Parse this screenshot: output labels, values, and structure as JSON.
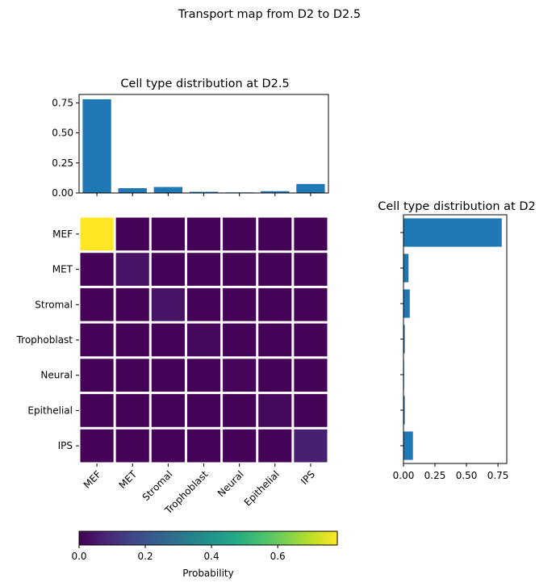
{
  "figure_title": "Transport map from D2 to D2.5",
  "colorbar": {
    "label": "Probability",
    "ticks": [
      0.0,
      0.2,
      0.4,
      0.6
    ],
    "tick_labels": [
      "0.0",
      "0.2",
      "0.4",
      "0.6"
    ],
    "range": [
      0,
      0.78
    ],
    "colormap": "viridis"
  },
  "chart_data": [
    {
      "type": "bar",
      "title": "Cell type distribution at D2.5",
      "categories": [
        "MEF",
        "MET",
        "Stromal",
        "Trophoblast",
        "Neural",
        "Epithelial",
        "IPS"
      ],
      "values": [
        0.78,
        0.04,
        0.05,
        0.01,
        0.005,
        0.015,
        0.075
      ],
      "ylim": [
        0,
        0.82
      ],
      "yticks": [
        "0.00",
        "0.25",
        "0.50",
        "0.75"
      ],
      "ytick_values": [
        0,
        0.25,
        0.5,
        0.75
      ],
      "color": "#1f77b4"
    },
    {
      "type": "heatmap",
      "rows": [
        "MEF",
        "MET",
        "Stromal",
        "Trophoblast",
        "Neural",
        "Epithelial",
        "IPS"
      ],
      "cols": [
        "MEF",
        "MET",
        "Stromal",
        "Trophoblast",
        "Neural",
        "Epithelial",
        "IPS"
      ],
      "values": [
        [
          0.78,
          0.005,
          0.005,
          0.005,
          0.005,
          0.005,
          0.005
        ],
        [
          0.005,
          0.04,
          0.005,
          0.005,
          0.005,
          0.005,
          0.005
        ],
        [
          0.005,
          0.005,
          0.04,
          0.005,
          0.005,
          0.005,
          0.005
        ],
        [
          0.005,
          0.005,
          0.005,
          0.015,
          0.005,
          0.005,
          0.005
        ],
        [
          0.005,
          0.005,
          0.005,
          0.005,
          0.01,
          0.005,
          0.005
        ],
        [
          0.005,
          0.005,
          0.005,
          0.005,
          0.005,
          0.02,
          0.005
        ],
        [
          0.005,
          0.005,
          0.005,
          0.005,
          0.005,
          0.005,
          0.07
        ]
      ]
    },
    {
      "type": "bar",
      "orientation": "horizontal",
      "title": "Cell type distribution at D2",
      "categories": [
        "MEF",
        "MET",
        "Stromal",
        "Trophoblast",
        "Neural",
        "Epithelial",
        "IPS"
      ],
      "values": [
        0.78,
        0.04,
        0.05,
        0.01,
        0.005,
        0.01,
        0.075
      ],
      "xlim": [
        0,
        0.82
      ],
      "xticks": [
        "0.00",
        "0.25",
        "0.50",
        "0.75"
      ],
      "xtick_values": [
        0,
        0.25,
        0.5,
        0.75
      ],
      "color": "#1f77b4"
    }
  ]
}
